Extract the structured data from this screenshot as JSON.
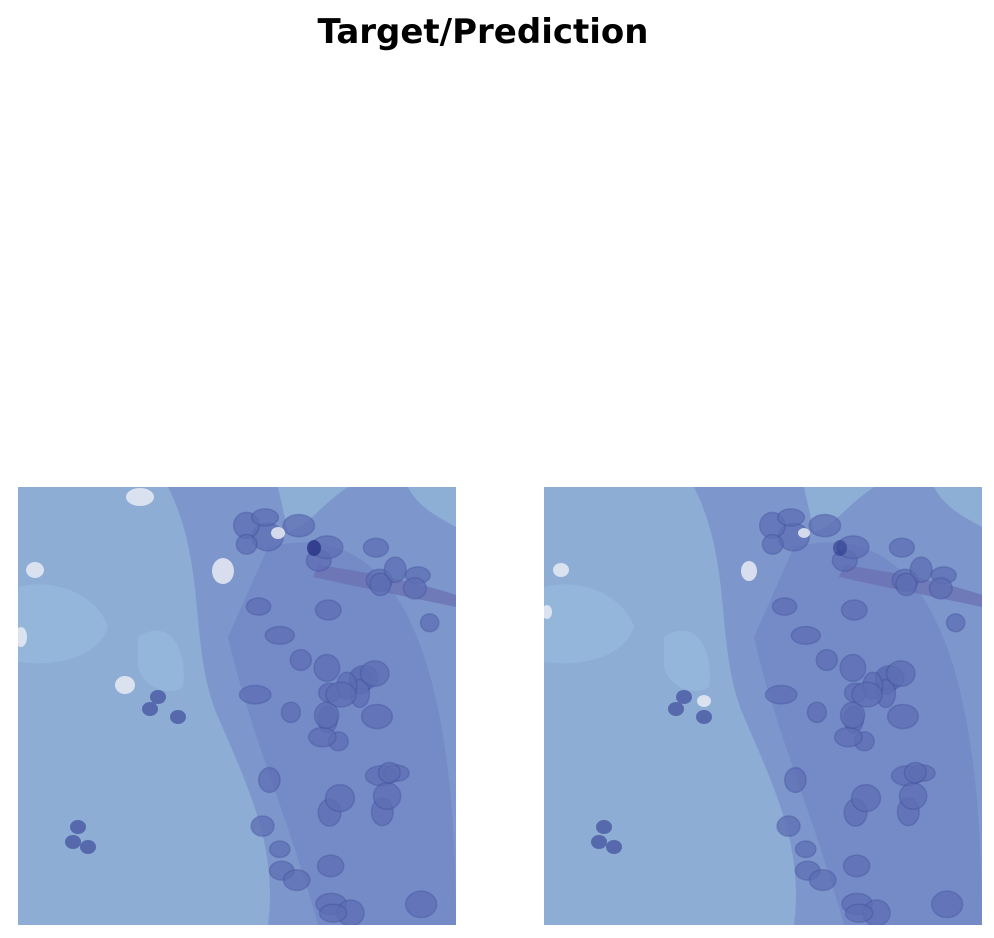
{
  "figure": {
    "title": "Target/Prediction"
  },
  "panels": [
    {
      "id": "target",
      "image_description_name": "histology-tile-target"
    },
    {
      "id": "prediction",
      "image_description_name": "histology-tile-prediction"
    }
  ],
  "colors": {
    "background": "#ffffff",
    "tissue_light": "#8fb0d6",
    "tissue_mid": "#7d97cc",
    "tissue_dark": "#6f82c2",
    "nucleus": "#5d6eb3",
    "nucleus_dark": "#3d4c9a",
    "vacuole": "#e8eaf3"
  }
}
